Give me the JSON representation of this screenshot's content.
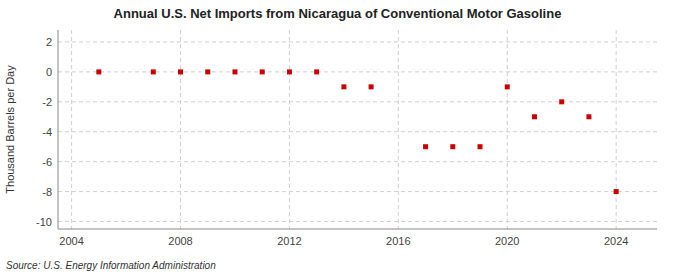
{
  "chart_data": {
    "type": "scatter",
    "title": "Annual U.S. Net Imports from Nicaragua of Conventional Motor Gasoline",
    "ylabel": "Thousand Barrels per Day",
    "annotations": [
      "Source: U.S. Energy Information Administration"
    ],
    "x": [
      2005,
      2007,
      2008,
      2009,
      2010,
      2011,
      2012,
      2013,
      2014,
      2015,
      2017,
      2018,
      2019,
      2020,
      2021,
      2022,
      2023,
      2024
    ],
    "values": [
      0,
      0,
      0,
      0,
      0,
      0,
      0,
      0,
      -1,
      -1,
      -5,
      -5,
      -5,
      -1,
      -3,
      -2,
      -3,
      -8
    ],
    "color": "#cc0000",
    "marker": "square",
    "xlim": [
      2003.5,
      2025.5
    ],
    "ylim": [
      -10.5,
      2.8
    ],
    "xticks": [
      2004,
      2008,
      2012,
      2016,
      2020,
      2024
    ],
    "yticks": [
      -10,
      -8,
      -6,
      -4,
      -2,
      0,
      2
    ],
    "grid": true
  }
}
